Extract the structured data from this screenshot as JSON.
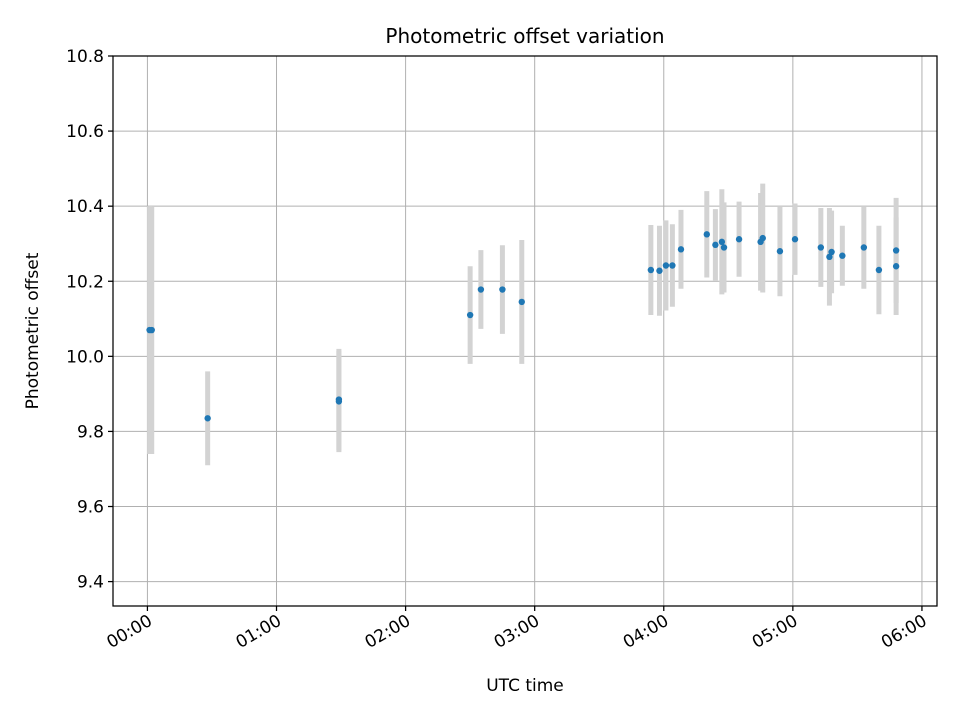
{
  "chart_data": {
    "type": "scatter",
    "title": "Photometric offset variation",
    "xlabel": "UTC time",
    "ylabel": "Photometric offset",
    "x_unit": "UTC time (hours since 00:00)",
    "xlim": [
      "23:44",
      "06:07"
    ],
    "ylim": [
      9.335,
      10.8
    ],
    "grid": true,
    "x_ticks": [
      {
        "value": "00:00",
        "label": "00:00"
      },
      {
        "value": "01:00",
        "label": "01:00"
      },
      {
        "value": "02:00",
        "label": "02:00"
      },
      {
        "value": "03:00",
        "label": "03:00"
      },
      {
        "value": "04:00",
        "label": "04:00"
      },
      {
        "value": "05:00",
        "label": "05:00"
      },
      {
        "value": "06:00",
        "label": "06:00"
      }
    ],
    "y_ticks": [
      9.4,
      9.6,
      9.8,
      10.0,
      10.2,
      10.4,
      10.6,
      10.8
    ],
    "y_tick_labels": [
      "9.4",
      "9.6",
      "9.8",
      "10.0",
      "10.2",
      "10.4",
      "10.6",
      "10.8"
    ],
    "point_color": "#1f77b4",
    "errorbar_color": "#d3d3d3",
    "points": [
      {
        "x": "00:01",
        "y": 10.07,
        "yerr": 0.33
      },
      {
        "x": "00:02",
        "y": 10.07,
        "yerr": 0.33
      },
      {
        "x": "00:28",
        "y": 9.835,
        "yerr": 0.125
      },
      {
        "x": "01:29",
        "y": 9.885,
        "yerr": 0.135
      },
      {
        "x": "01:29",
        "y": 9.88,
        "yerr": 0.135
      },
      {
        "x": "02:30",
        "y": 10.11,
        "yerr": 0.13
      },
      {
        "x": "02:35",
        "y": 10.178,
        "yerr": 0.105
      },
      {
        "x": "02:45",
        "y": 10.178,
        "yerr": 0.118
      },
      {
        "x": "02:54",
        "y": 10.145,
        "yerr": 0.165
      },
      {
        "x": "03:54",
        "y": 10.23,
        "yerr": 0.12
      },
      {
        "x": "03:58",
        "y": 10.228,
        "yerr": 0.12
      },
      {
        "x": "04:01",
        "y": 10.242,
        "yerr": 0.12
      },
      {
        "x": "04:04",
        "y": 10.242,
        "yerr": 0.11
      },
      {
        "x": "04:08",
        "y": 10.285,
        "yerr": 0.105
      },
      {
        "x": "04:20",
        "y": 10.325,
        "yerr": 0.115
      },
      {
        "x": "04:24",
        "y": 10.297,
        "yerr": 0.095
      },
      {
        "x": "04:27",
        "y": 10.305,
        "yerr": 0.14
      },
      {
        "x": "04:28",
        "y": 10.29,
        "yerr": 0.12
      },
      {
        "x": "04:35",
        "y": 10.312,
        "yerr": 0.1
      },
      {
        "x": "04:45",
        "y": 10.305,
        "yerr": 0.13
      },
      {
        "x": "04:46",
        "y": 10.315,
        "yerr": 0.145
      },
      {
        "x": "04:54",
        "y": 10.28,
        "yerr": 0.12
      },
      {
        "x": "05:01",
        "y": 10.312,
        "yerr": 0.095
      },
      {
        "x": "05:13",
        "y": 10.29,
        "yerr": 0.105
      },
      {
        "x": "05:17",
        "y": 10.265,
        "yerr": 0.13
      },
      {
        "x": "05:18",
        "y": 10.278,
        "yerr": 0.11
      },
      {
        "x": "05:23",
        "y": 10.268,
        "yerr": 0.08
      },
      {
        "x": "05:33",
        "y": 10.29,
        "yerr": 0.11
      },
      {
        "x": "05:40",
        "y": 10.23,
        "yerr": 0.118
      },
      {
        "x": "05:48",
        "y": 10.282,
        "yerr": 0.14
      },
      {
        "x": "05:48",
        "y": 10.24,
        "yerr": 0.13
      }
    ]
  }
}
